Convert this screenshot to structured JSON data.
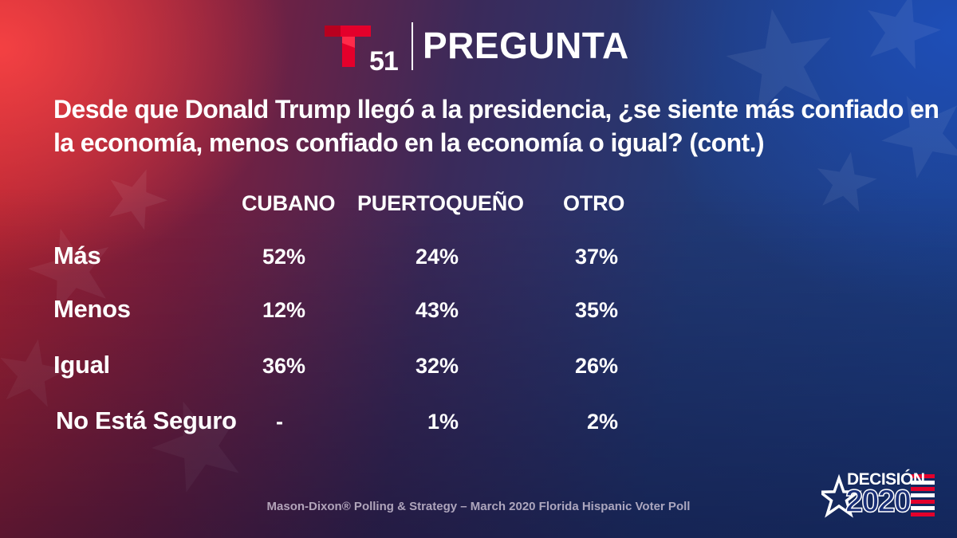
{
  "header": {
    "logo_number": "51",
    "title": "PREGUNTA"
  },
  "question": "Desde que Donald Trump llegó a la presidencia, ¿se siente más confiado en la economía, menos confiado en la economía o igual? (cont.)",
  "chart_data": {
    "type": "table",
    "columns": [
      "CUBANO",
      "PUERTOQUEÑO",
      "OTRO"
    ],
    "rows": [
      {
        "label": "Más",
        "values": [
          "52%",
          "24%",
          "37%"
        ]
      },
      {
        "label": "Menos",
        "values": [
          "12%",
          "43%",
          "35%"
        ]
      },
      {
        "label": "Igual",
        "values": [
          "36%",
          "32%",
          "26%"
        ]
      },
      {
        "label": "No Está Seguro",
        "values": [
          "-",
          "1%",
          "2%"
        ]
      }
    ]
  },
  "source": "Mason-Dixon® Polling & Strategy – March 2020 Florida Hispanic Voter Poll",
  "badge": {
    "top": "DECISIÓN",
    "year": "2020"
  },
  "colors": {
    "brand_red": "#e4002b",
    "navy": "#1a2f77",
    "text": "#ffffff"
  }
}
